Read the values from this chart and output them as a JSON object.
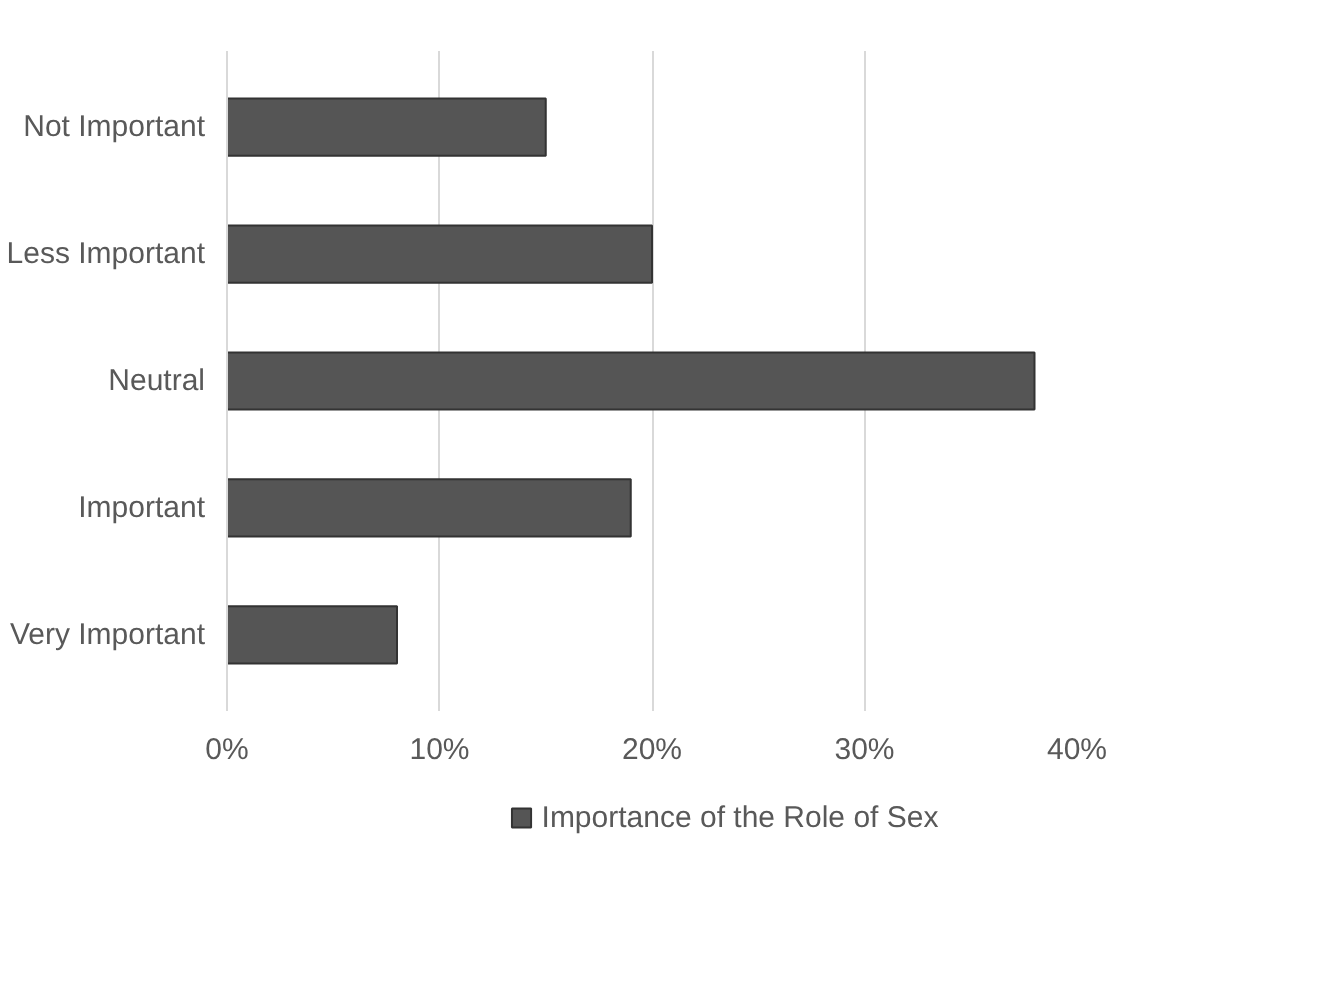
{
  "chart_data": {
    "type": "bar",
    "orientation": "horizontal",
    "categories": [
      "Not Important",
      "Less Important",
      "Neutral",
      "Important",
      "Very Important"
    ],
    "series": [
      {
        "name": "Importance of the Role of Sex",
        "color": "#555555",
        "values": [
          15,
          20,
          38,
          19,
          8
        ]
      }
    ],
    "xlim": [
      0,
      40
    ],
    "xticks": [
      {
        "value": 0,
        "label": "0%"
      },
      {
        "value": 10,
        "label": "10%"
      },
      {
        "value": 20,
        "label": "20%"
      },
      {
        "value": 30,
        "label": "30%"
      },
      {
        "value": 40,
        "label": "40%"
      }
    ],
    "grid": "x",
    "legend": "bottom"
  }
}
